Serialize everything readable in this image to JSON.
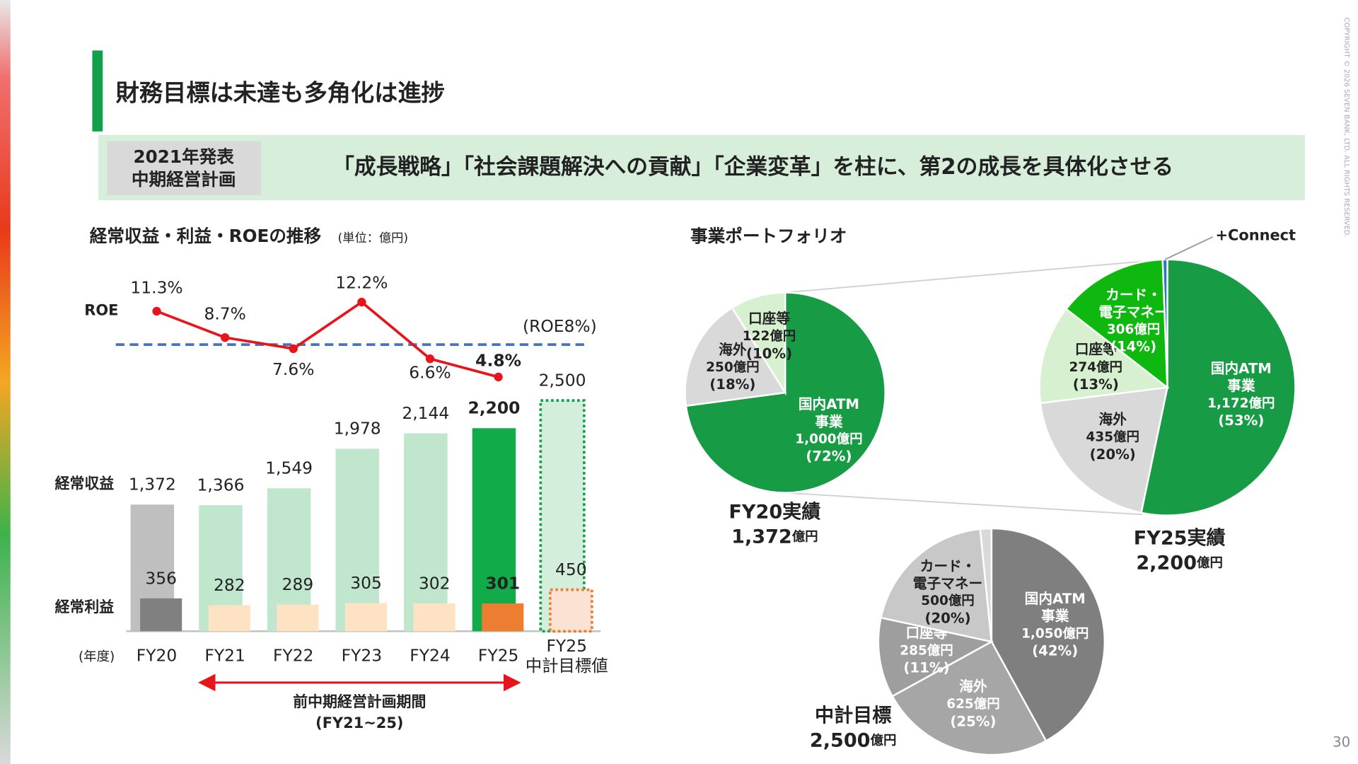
{
  "header": {
    "title": "財務目標は未達も多角化は進捗"
  },
  "banner": {
    "label": "2021年発表\n中期経営計画",
    "text": "「成長戦略」「社会課題解決への貢献」「企業変革」を柱に、第2の成長を具体化させる"
  },
  "portfolio_title": "事業ポートフォリオ",
  "copyright": "COPYRIGHT © 2026 SEVEN BANK, LTD. ALL RIGHTS RESERVED.",
  "page_number": "30",
  "chart_data": [
    {
      "type": "bar",
      "title": "経常収益・利益・ROEの推移",
      "subtitle": "(単位：億円)",
      "x_label": "(年度)",
      "categories": [
        "FY20",
        "FY21",
        "FY22",
        "FY23",
        "FY24",
        "FY25",
        "FY25\n中計目標値"
      ],
      "series": [
        {
          "name": "経常収益",
          "values": [
            1372,
            1366,
            1549,
            1978,
            2144,
            2200,
            2500
          ],
          "value_labels": [
            "1,372",
            "1,366",
            "1,549",
            "1,978",
            "2,144",
            "2,200",
            "2,500"
          ],
          "colors": [
            "#bfbfbf",
            "#c0e6cd",
            "#c0e6cd",
            "#c0e6cd",
            "#c0e6cd",
            "#12ab4a",
            "#d3eedb"
          ]
        },
        {
          "name": "経常利益",
          "values": [
            356,
            282,
            289,
            305,
            302,
            301,
            450
          ],
          "colors": [
            "#808080",
            "#fde3c4",
            "#fde3c4",
            "#fde3c4",
            "#fde3c4",
            "#ed7d31",
            "#fbe2d3"
          ]
        },
        {
          "name": "ROE",
          "type": "line",
          "color": "#e8141c",
          "values": [
            11.3,
            8.7,
            7.6,
            12.2,
            6.6,
            4.8,
            null
          ],
          "value_labels": [
            "11.3%",
            "8.7%",
            "7.6%",
            "12.2%",
            "6.6%",
            "4.8%",
            null
          ]
        }
      ],
      "reference": {
        "value": 8,
        "label": "(ROE8%)",
        "color": "#4472c4"
      },
      "annotation": "前中期経営計画期間\n(FY21~25)"
    },
    {
      "type": "pie",
      "title": "FY20実績",
      "total": "1,372",
      "unit": "億円",
      "categories": [
        "国内ATM\n事業",
        "海外",
        "口座等"
      ],
      "values": [
        1000,
        250,
        122
      ],
      "value_labels": [
        "1,000億円",
        "250億円",
        "122億円"
      ],
      "percent_labels": [
        "(72%)",
        "(18%)",
        "(10%)"
      ],
      "colors": [
        "#179b45",
        "#d9d9d9",
        "#d6f0d0"
      ]
    },
    {
      "type": "pie",
      "title": "FY25実績",
      "total": "2,200",
      "unit": "億円",
      "categories": [
        "国内ATM\n事業",
        "海外",
        "口座等",
        "カード・\n電子マネー",
        "+Connect"
      ],
      "values": [
        1172,
        435,
        274,
        306,
        13
      ],
      "value_labels": [
        "1,172億円",
        "435億円",
        "274億円",
        "306億円",
        null
      ],
      "percent_labels": [
        "(53%)",
        "(20%)",
        "(13%)",
        "(14%)",
        null
      ],
      "colors": [
        "#179b45",
        "#d9d9d9",
        "#d6f0d0",
        "#0fb80f",
        "#2e75b6"
      ]
    },
    {
      "type": "pie",
      "title": "中計目標",
      "total": "2,500",
      "unit": "億円",
      "categories": [
        "国内ATM\n事業",
        "海外",
        "口座等",
        "カード・\n電子マネー",
        null
      ],
      "values": [
        1050,
        625,
        285,
        500,
        40
      ],
      "value_labels": [
        "1,050億円",
        "625億円",
        "285億円",
        "500億円",
        null
      ],
      "percent_labels": [
        "(42%)",
        "(25%)",
        "(11%)",
        "(20%)",
        null
      ],
      "colors": [
        "#7f7f7f",
        "#a6a6a6",
        "#9e9e9e",
        "#c8c8c8",
        "#d9d9d9"
      ]
    }
  ]
}
